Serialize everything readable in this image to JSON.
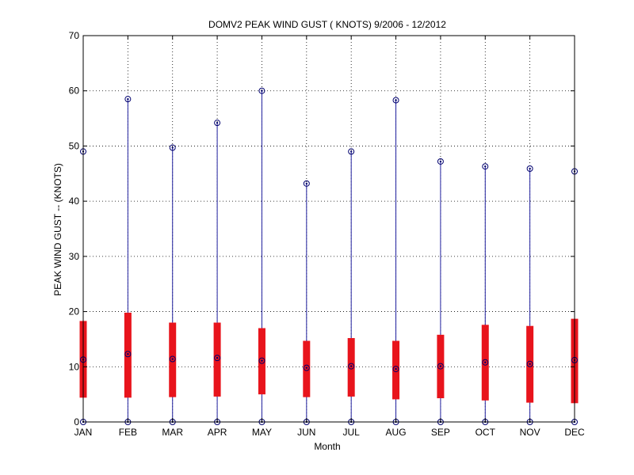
{
  "chart_data": {
    "type": "box",
    "title": "DOMV2  PEAK WIND GUST ( KNOTS) 9/2006 - 12/2012",
    "xlabel": "Month",
    "ylabel": "PEAK WIND GUST -- (KNOTS)",
    "ylim": [
      0,
      70
    ],
    "yticks": [
      0,
      10,
      20,
      30,
      40,
      50,
      60,
      70
    ],
    "grid": true,
    "categories": [
      "JAN",
      "FEB",
      "MAR",
      "APR",
      "MAY",
      "JUN",
      "JUL",
      "AUG",
      "SEP",
      "OCT",
      "NOV",
      "DEC"
    ],
    "series": [
      {
        "min": [
          0,
          0,
          0,
          0,
          0,
          0,
          0,
          0,
          0,
          0,
          0,
          0
        ],
        "q1": [
          4.4,
          4.4,
          4.5,
          4.6,
          5.0,
          4.5,
          4.6,
          4.1,
          4.3,
          3.9,
          3.5,
          3.4
        ],
        "median": [
          11.3,
          12.3,
          11.4,
          11.6,
          11.1,
          9.8,
          10.1,
          9.6,
          10.1,
          10.8,
          10.5,
          11.2
        ],
        "q3": [
          18.3,
          19.8,
          18.0,
          18.0,
          17.0,
          14.7,
          15.2,
          14.7,
          15.8,
          17.6,
          17.4,
          18.7
        ],
        "max": [
          49.0,
          58.5,
          49.7,
          54.2,
          60.0,
          43.2,
          49.0,
          58.3,
          47.2,
          46.3,
          45.9,
          45.4
        ]
      }
    ],
    "colors": {
      "box": "#e8141c",
      "whisker": "#1f1f9e",
      "marker": "#00006e",
      "grid": "#000000",
      "axis": "#000000"
    }
  }
}
